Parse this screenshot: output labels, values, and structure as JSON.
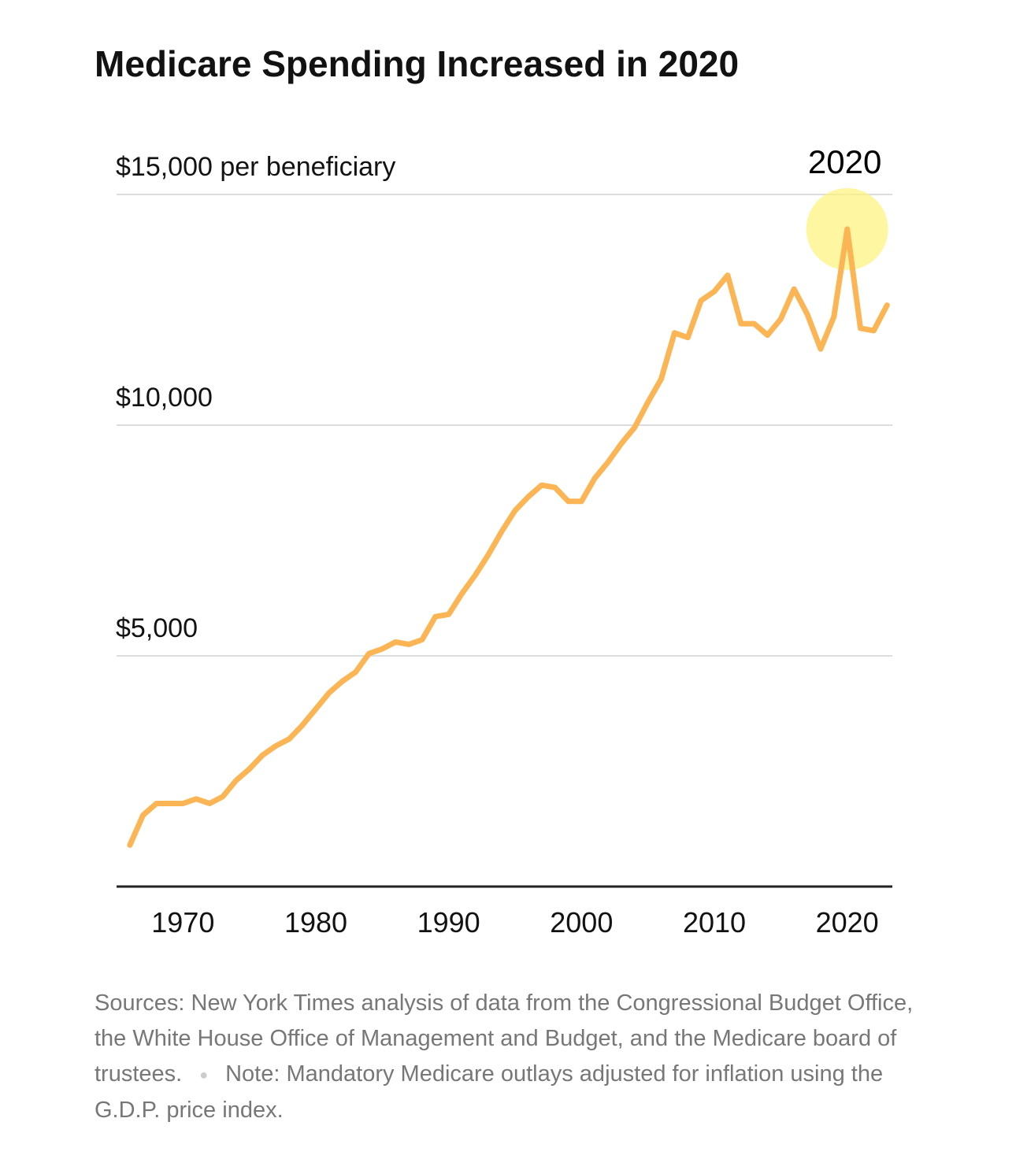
{
  "chart_data": {
    "type": "line",
    "title": "Medicare Spending Increased in 2020",
    "x": [
      1966,
      1967,
      1968,
      1969,
      1970,
      1971,
      1972,
      1973,
      1974,
      1975,
      1976,
      1977,
      1978,
      1979,
      1980,
      1981,
      1982,
      1983,
      1984,
      1985,
      1986,
      1987,
      1988,
      1989,
      1990,
      1991,
      1992,
      1993,
      1994,
      1995,
      1996,
      1997,
      1998,
      1999,
      2000,
      2001,
      2002,
      2003,
      2004,
      2005,
      2006,
      2007,
      2008,
      2009,
      2010,
      2011,
      2012,
      2013,
      2014,
      2015,
      2016,
      2017,
      2018,
      2019,
      2020,
      2021,
      2022,
      2023
    ],
    "values": [
      900,
      1550,
      1800,
      1800,
      1800,
      1900,
      1800,
      1950,
      2300,
      2550,
      2850,
      3050,
      3200,
      3500,
      3850,
      4200,
      4450,
      4650,
      5050,
      5150,
      5300,
      5250,
      5350,
      5850,
      5900,
      6350,
      6750,
      7200,
      7700,
      8150,
      8450,
      8700,
      8650,
      8350,
      8350,
      8850,
      9200,
      9600,
      9950,
      10500,
      11000,
      12000,
      11900,
      12700,
      12900,
      13250,
      12200,
      12200,
      11950,
      12300,
      12950,
      12400,
      11650,
      12350,
      14250,
      12100,
      12050,
      12600
    ],
    "color": "#fbb555",
    "xlim": [
      1965,
      2023.4
    ],
    "xticks": [
      1970,
      1980,
      1990,
      2000,
      2010,
      2020
    ],
    "ylim": [
      0,
      15000
    ],
    "yticks": [
      {
        "value": 5000,
        "label": "$5,000"
      },
      {
        "value": 10000,
        "label": "$10,000"
      },
      {
        "value": 15000,
        "label": "$15,000 per beneficiary"
      }
    ],
    "grid": true,
    "annotation": {
      "label": "2020",
      "x": 2020
    },
    "source": "Sources: New York Times analysis of data from the Congressional Budget Office, the White House Office of Management and Budget, and the Medicare board of trustees.",
    "note": "Note: Mandatory Medicare outlays adjusted for inflation using the G.D.P. price index."
  }
}
